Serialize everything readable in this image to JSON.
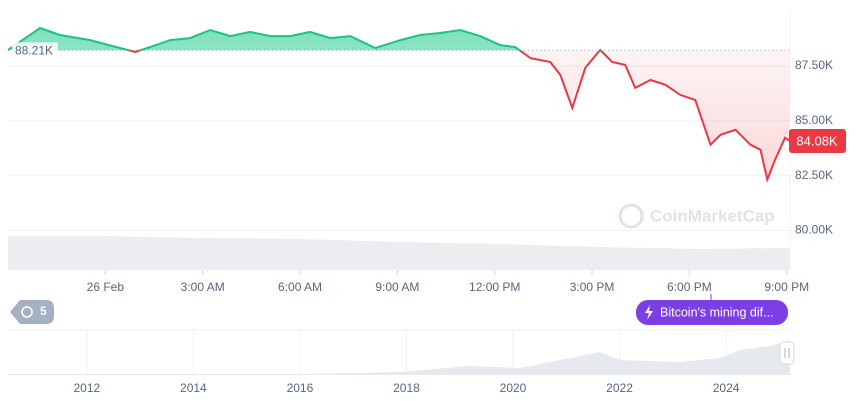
{
  "chart_data": {
    "type": "line",
    "x": [
      0.0,
      0.99,
      1.6,
      2.53,
      3.45,
      3.92,
      4.38,
      5.0,
      5.61,
      6.23,
      6.85,
      7.46,
      8.08,
      8.7,
      9.31,
      9.93,
      10.55,
      11.32,
      12.09,
      12.7,
      13.32,
      13.94,
      14.55,
      15.17,
      15.63,
      16.1,
      16.71,
      17.02,
      17.39,
      17.79,
      18.25,
      18.62,
      19.02,
      19.33,
      19.8,
      20.26,
      20.72,
      21.18,
      21.65,
      21.96,
      22.42,
      22.88,
      23.19,
      23.4,
      23.64,
      23.95,
      24.1
    ],
    "values": [
      88.23,
      89.23,
      88.91,
      88.68,
      88.32,
      88.14,
      88.36,
      88.68,
      88.77,
      89.14,
      88.86,
      89.05,
      88.86,
      88.86,
      89.05,
      88.77,
      88.86,
      88.32,
      88.68,
      88.91,
      89.0,
      89.14,
      88.86,
      88.45,
      88.36,
      87.86,
      87.68,
      87.09,
      85.59,
      87.41,
      88.23,
      87.68,
      87.55,
      86.5,
      86.86,
      86.64,
      86.18,
      85.95,
      83.91,
      84.36,
      84.59,
      83.91,
      83.68,
      82.32,
      83.23,
      84.23,
      84.08
    ],
    "color_above": "#16c784",
    "color_below": "#ea3943",
    "baseline": {
      "value": 88.21,
      "label": "88.21K"
    },
    "current": {
      "value": 84.08,
      "label": "84.08K"
    },
    "xlim": [
      0,
      24.1
    ],
    "xticks": [
      {
        "value": 3,
        "label": "26 Feb"
      },
      {
        "value": 6,
        "label": "3:00 AM"
      },
      {
        "value": 9,
        "label": "6:00 AM"
      },
      {
        "value": 12,
        "label": "9:00 AM"
      },
      {
        "value": 15,
        "label": "12:00 PM"
      },
      {
        "value": 18,
        "label": "3:00 PM"
      },
      {
        "value": 21,
        "label": "6:00 PM"
      },
      {
        "value": 24,
        "label": "9:00 PM"
      }
    ],
    "ylim": [
      78.2,
      90.05
    ],
    "yticks": [
      {
        "value": 87.5,
        "label": "87.50K"
      },
      {
        "value": 85,
        "label": "85.00K"
      },
      {
        "value": 82.5,
        "label": "82.50K"
      },
      {
        "value": 80,
        "label": "80.00K"
      }
    ],
    "grid": true,
    "watermark": "CoinMarketCap",
    "event_label": "Bitcoin's mining dif...",
    "annotation_count": 5,
    "navigator": {
      "xlim": [
        2010.52,
        2025.2
      ],
      "xticks": [
        2012,
        2014,
        2016,
        2018,
        2020,
        2022,
        2024
      ]
    }
  }
}
